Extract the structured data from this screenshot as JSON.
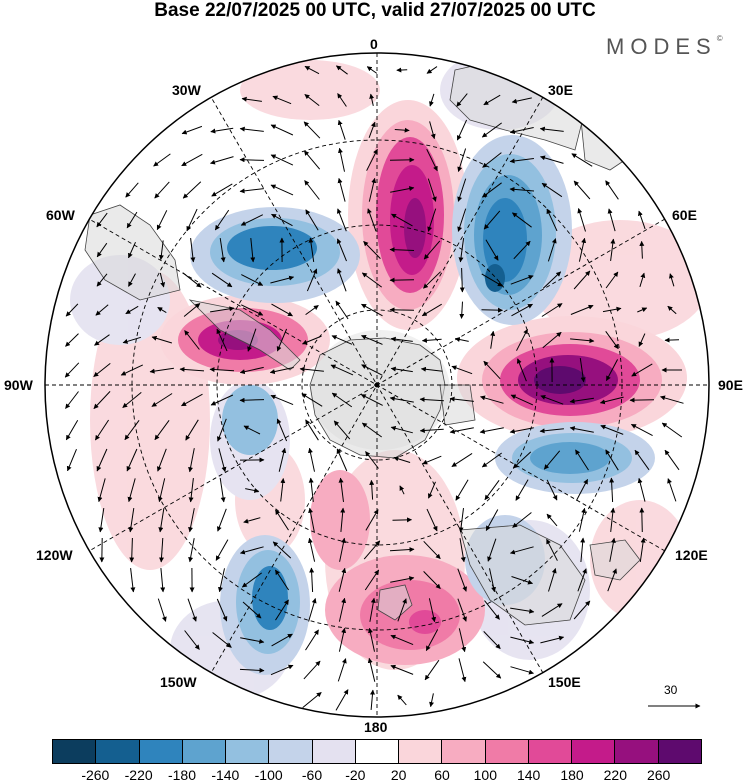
{
  "title": "Base 22/07/2025 00 UTC, valid 27/07/2025 00 UTC",
  "brand": "MODES",
  "brand_mark": "©",
  "longitude_labels": {
    "lon_0": "0",
    "lon_30e": "30E",
    "lon_60e": "60E",
    "lon_90e": "90E",
    "lon_120e": "120E",
    "lon_150e": "150E",
    "lon_180": "180",
    "lon_150w": "150W",
    "lon_120w": "120W",
    "lon_90w": "90W",
    "lon_60w": "60W",
    "lon_30w": "30W"
  },
  "reference_vector": "30",
  "colorbar": {
    "colors": [
      "#0c3d5e",
      "#145f90",
      "#2f84bd",
      "#5ea3cf",
      "#93c0e0",
      "#c4d3ea",
      "#e4e1f0",
      "#ffffff",
      "#fad6db",
      "#f7acc1",
      "#f07ba7",
      "#e14a98",
      "#c41b8a",
      "#96107e",
      "#5e0a6e"
    ],
    "ticks": [
      "-260",
      "-220",
      "-180",
      "-140",
      "-100",
      "-60",
      "-20",
      "20",
      "60",
      "100",
      "140",
      "180",
      "220",
      "260"
    ]
  }
}
